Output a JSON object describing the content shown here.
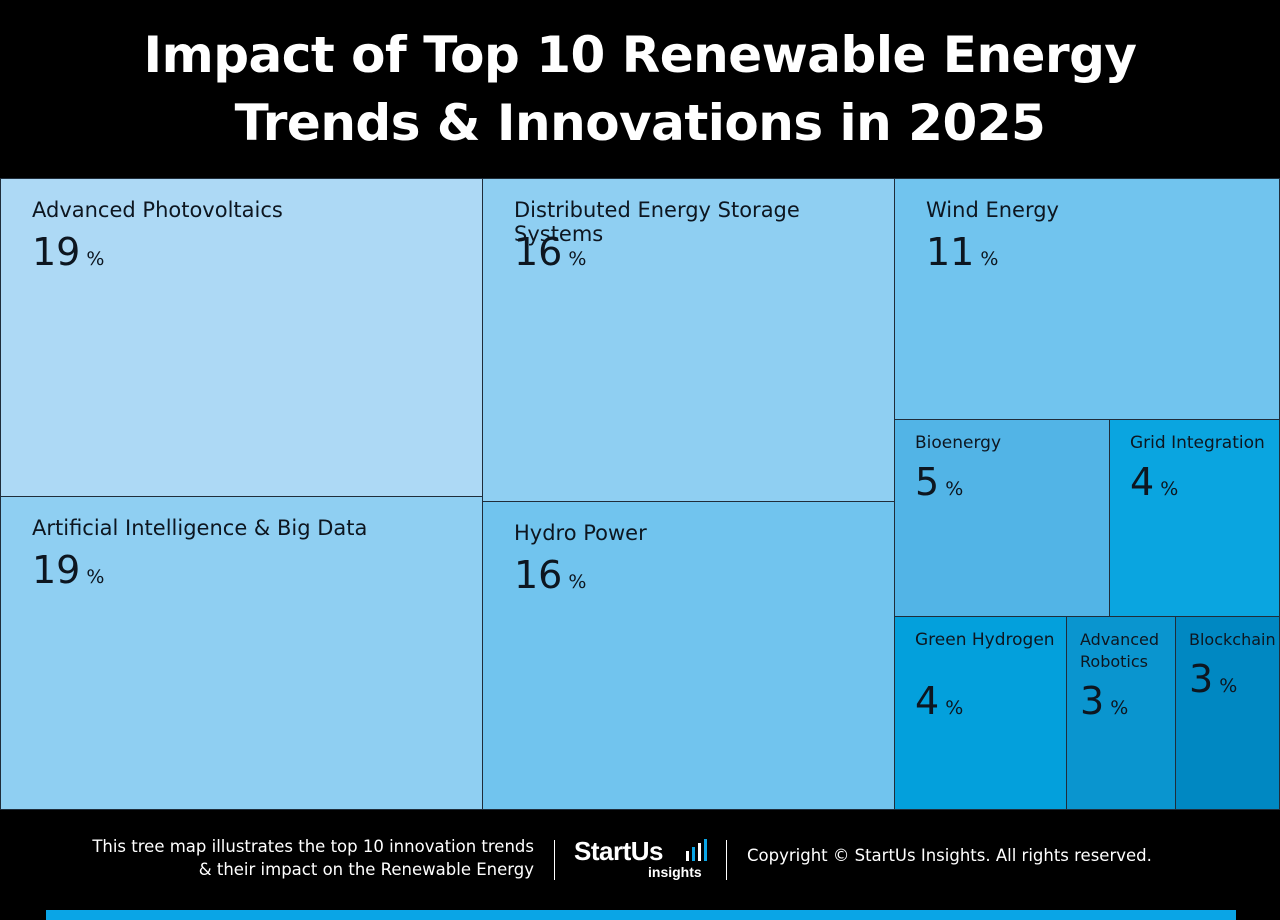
{
  "title": "Impact of Top 10 Renewable Energy Trends & Innovations in 2025",
  "chart_data": {
    "type": "treemap",
    "unit": "%",
    "items": [
      {
        "label": "Advanced Photovoltaics",
        "value": 19,
        "color": "#add9f5"
      },
      {
        "label": "Artificial Intelligence & Big Data",
        "value": 19,
        "color": "#8fcff2"
      },
      {
        "label": "Distributed Energy Storage Systems",
        "value": 16,
        "color": "#8fcff2"
      },
      {
        "label": "Hydro Power",
        "value": 16,
        "color": "#71c4ee"
      },
      {
        "label": "Wind Energy",
        "value": 11,
        "color": "#71c4ee"
      },
      {
        "label": "Bioenergy",
        "value": 5,
        "color": "#52b4e6"
      },
      {
        "label": "Grid Integration",
        "value": 4,
        "color": "#0aa5e0"
      },
      {
        "label": "Green Hydrogen",
        "value": 4,
        "color": "#03a0dc"
      },
      {
        "label": "Advanced Robotics",
        "value": 3,
        "color": "#0a95cf"
      },
      {
        "label": "Blockchain",
        "value": 3,
        "color": "#0088c2"
      }
    ]
  },
  "footer": {
    "description_line1": "This tree map illustrates the top 10 innovation trends",
    "description_line2": "& their impact on the Renewable Energy",
    "logo_main": "StartUs",
    "logo_sub": "insights",
    "copyright": "Copyright © StartUs Insights. All rights reserved.",
    "accent_color": "#0aa5e6"
  }
}
